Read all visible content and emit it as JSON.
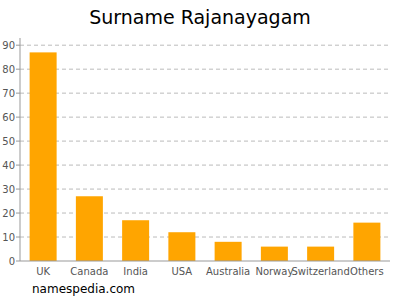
{
  "chart_data": {
    "type": "bar",
    "title": "Surname Rajanayagam",
    "categories": [
      "UK",
      "Canada",
      "India",
      "USA",
      "Australia",
      "Norway",
      "Switzerland",
      "Others"
    ],
    "values": [
      87,
      27,
      17,
      12,
      8,
      6,
      6,
      16
    ],
    "color": "#ffa500",
    "ylim": [
      0,
      93
    ],
    "yticks": [
      0,
      10,
      20,
      30,
      40,
      50,
      60,
      70,
      80,
      90
    ],
    "grid": true,
    "annotations": [
      "namespedia.com"
    ]
  }
}
